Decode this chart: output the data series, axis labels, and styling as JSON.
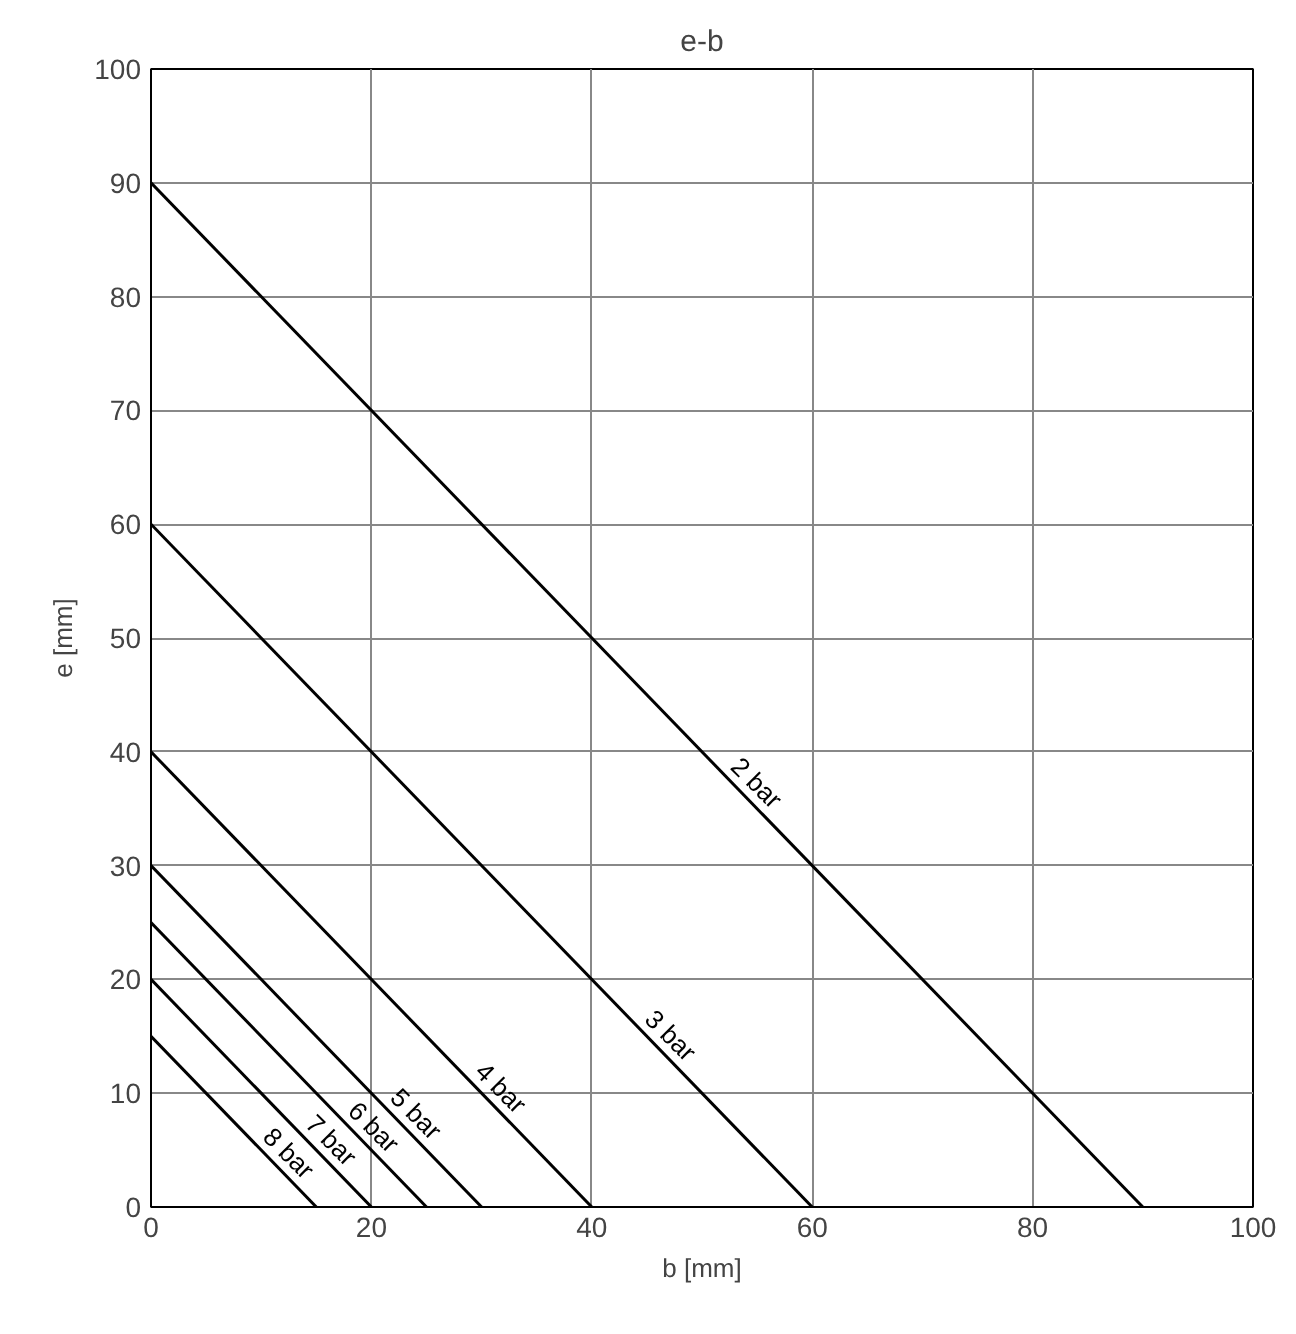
{
  "chart_data": {
    "type": "line",
    "title": "e-b",
    "xlabel": "b [mm]",
    "ylabel": "e [mm]",
    "xlim": [
      0,
      100
    ],
    "ylim": [
      0,
      100
    ],
    "xticks": [
      0,
      20,
      40,
      60,
      80,
      100
    ],
    "yticks": [
      0,
      10,
      20,
      30,
      40,
      50,
      60,
      70,
      80,
      90,
      100
    ],
    "grid": true,
    "series": [
      {
        "name": "2 bar",
        "color": "#000000",
        "x": [
          0,
          90
        ],
        "values": [
          90,
          0
        ]
      },
      {
        "name": "3 bar",
        "color": "#000000",
        "x": [
          0,
          60
        ],
        "values": [
          60,
          0
        ]
      },
      {
        "name": "4 bar",
        "color": "#000000",
        "x": [
          0,
          40
        ],
        "values": [
          40,
          0
        ]
      },
      {
        "name": "5 bar",
        "color": "#000000",
        "x": [
          0,
          30
        ],
        "values": [
          30,
          0
        ]
      },
      {
        "name": "6 bar",
        "color": "#000000",
        "x": [
          0,
          25
        ],
        "values": [
          25,
          0
        ]
      },
      {
        "name": "7 bar",
        "color": "#000000",
        "x": [
          0,
          20
        ],
        "values": [
          20,
          0
        ]
      },
      {
        "name": "8 bar",
        "color": "#000000",
        "x": [
          0,
          15
        ],
        "values": [
          15,
          0
        ]
      }
    ]
  }
}
